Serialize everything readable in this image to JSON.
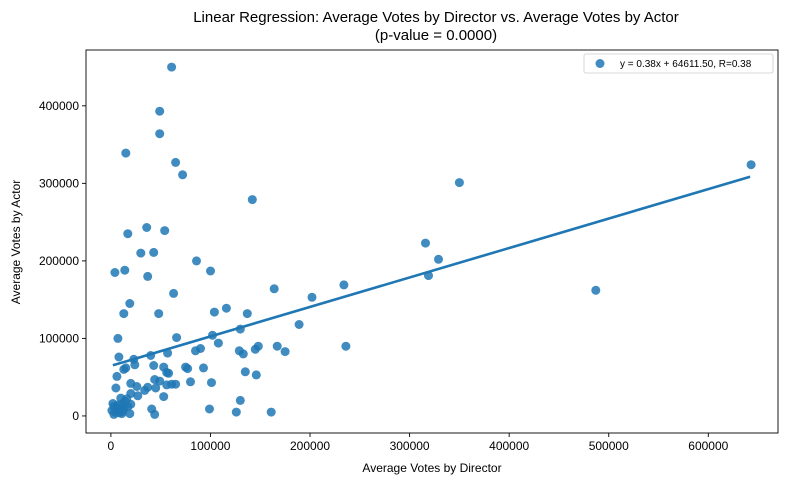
{
  "chart_data": {
    "type": "scatter",
    "title": "Linear Regression: Average Votes by Director vs. Average Votes by Actor",
    "subtitle": "(p-value = 0.0000)",
    "xlabel": "Average Votes by Director",
    "ylabel": "Average Votes by Actor",
    "xlim": [
      -25000,
      670000
    ],
    "ylim": [
      -22000,
      472000
    ],
    "xticks": [
      0,
      100000,
      200000,
      300000,
      400000,
      500000,
      600000
    ],
    "yticks": [
      0,
      100000,
      200000,
      300000,
      400000
    ],
    "grid": false,
    "legend_position": "top-right",
    "legend_label": "y = 0.38x + 64611.50, R=0.38",
    "point_color": "#1f77b4",
    "line_color": "#1f77b4",
    "regression": {
      "slope": 0.38,
      "intercept": 64611.5,
      "x_range": [
        2000,
        642000
      ]
    },
    "points": [
      [
        61000,
        450000
      ],
      [
        49000,
        393000
      ],
      [
        49000,
        364000
      ],
      [
        15000,
        339000
      ],
      [
        65000,
        327000
      ],
      [
        72000,
        311000
      ],
      [
        142000,
        279000
      ],
      [
        643000,
        324000
      ],
      [
        350000,
        301000
      ],
      [
        36000,
        243000
      ],
      [
        17000,
        235000
      ],
      [
        54000,
        239000
      ],
      [
        316000,
        223000
      ],
      [
        329000,
        202000
      ],
      [
        319000,
        181000
      ],
      [
        487000,
        162000
      ],
      [
        30000,
        210000
      ],
      [
        43000,
        211000
      ],
      [
        86000,
        200000
      ],
      [
        100000,
        187000
      ],
      [
        4000,
        185000
      ],
      [
        14000,
        188000
      ],
      [
        37000,
        180000
      ],
      [
        164000,
        164000
      ],
      [
        234000,
        169000
      ],
      [
        202000,
        153000
      ],
      [
        63000,
        158000
      ],
      [
        19000,
        145000
      ],
      [
        116000,
        139000
      ],
      [
        104000,
        134000
      ],
      [
        137000,
        132000
      ],
      [
        13000,
        132000
      ],
      [
        48000,
        132000
      ],
      [
        189000,
        118000
      ],
      [
        130000,
        112000
      ],
      [
        7000,
        100000
      ],
      [
        66000,
        101000
      ],
      [
        102000,
        104000
      ],
      [
        108000,
        94000
      ],
      [
        236000,
        90000
      ],
      [
        148000,
        90000
      ],
      [
        167000,
        90000
      ],
      [
        90000,
        87000
      ],
      [
        145000,
        86000
      ],
      [
        85000,
        84000
      ],
      [
        129000,
        84000
      ],
      [
        175000,
        83000
      ],
      [
        133000,
        80000
      ],
      [
        40000,
        78000
      ],
      [
        57000,
        81000
      ],
      [
        8000,
        76000
      ],
      [
        23000,
        73000
      ],
      [
        43000,
        65000
      ],
      [
        24000,
        66000
      ],
      [
        15000,
        62000
      ],
      [
        13000,
        60000
      ],
      [
        53000,
        63000
      ],
      [
        75000,
        63000
      ],
      [
        77000,
        61000
      ],
      [
        93000,
        62000
      ],
      [
        135000,
        57000
      ],
      [
        146000,
        53000
      ],
      [
        56000,
        56000
      ],
      [
        58000,
        55000
      ],
      [
        6000,
        51000
      ],
      [
        44000,
        47000
      ],
      [
        49000,
        45000
      ],
      [
        80000,
        44000
      ],
      [
        101000,
        43000
      ],
      [
        61000,
        41000
      ],
      [
        56000,
        40000
      ],
      [
        65000,
        41000
      ],
      [
        20000,
        42000
      ],
      [
        26000,
        38000
      ],
      [
        37000,
        37000
      ],
      [
        45000,
        36000
      ],
      [
        5000,
        36000
      ],
      [
        34000,
        33000
      ],
      [
        20000,
        29000
      ],
      [
        27000,
        26000
      ],
      [
        53000,
        25000
      ],
      [
        10000,
        23000
      ],
      [
        14000,
        19000
      ],
      [
        16000,
        22000
      ],
      [
        11000,
        15000
      ],
      [
        20000,
        15000
      ],
      [
        130000,
        20000
      ],
      [
        2000,
        16000
      ],
      [
        3000,
        12000
      ],
      [
        6000,
        10000
      ],
      [
        9000,
        8000
      ],
      [
        13000,
        10000
      ],
      [
        17000,
        12000
      ],
      [
        41000,
        9000
      ],
      [
        99000,
        9000
      ],
      [
        4000,
        5000
      ],
      [
        8000,
        4000
      ],
      [
        11000,
        3000
      ],
      [
        1000,
        7000
      ],
      [
        3000,
        2000
      ],
      [
        19000,
        3000
      ],
      [
        44000,
        2000
      ],
      [
        126000,
        5000
      ],
      [
        161000,
        5000
      ],
      [
        7000,
        14000
      ],
      [
        12000,
        6000
      ]
    ]
  }
}
